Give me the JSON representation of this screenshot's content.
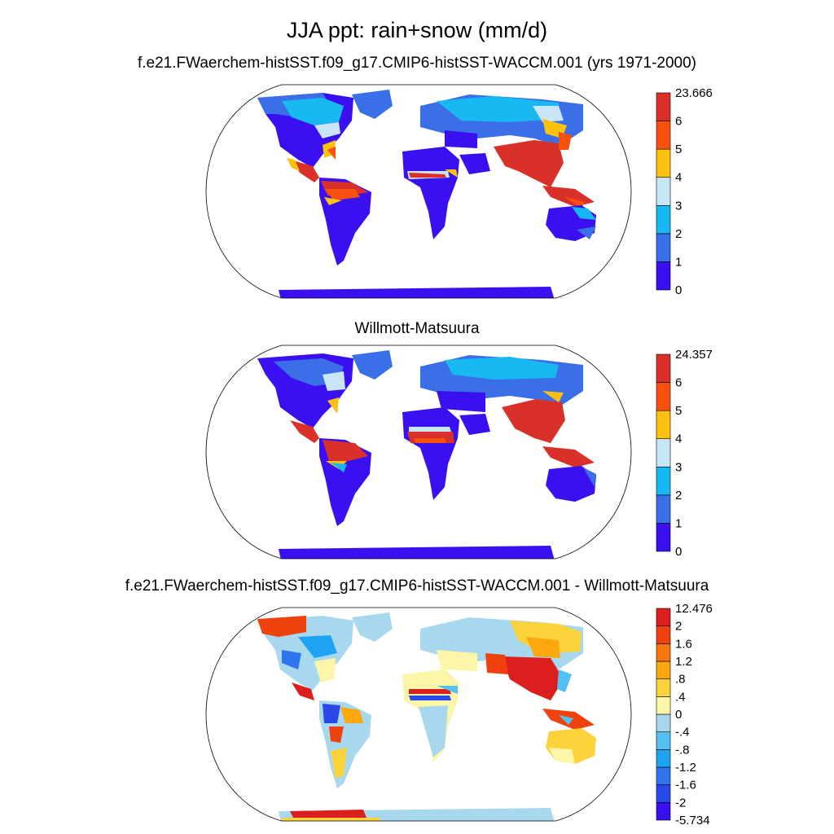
{
  "title": "JJA ppt: rain+snow (mm/d)",
  "panels": [
    {
      "id": "model",
      "title": "f.e21.FWaerchem-histSST.f09_g17.CMIP6-histSST-WACCM.001 (yrs 1971-2000)",
      "colorbar": {
        "labels": [
          "0",
          "1",
          "2",
          "3",
          "4",
          "5",
          "6",
          "23.666"
        ],
        "colors": [
          "#3a10f0",
          "#3a6fe8",
          "#18b8f2",
          "#c8e6f6",
          "#fcc10e",
          "#f8500f",
          "#d9312a"
        ]
      }
    },
    {
      "id": "observations",
      "title": "Willmott-Matsuura",
      "colorbar": {
        "labels": [
          "0",
          "1",
          "2",
          "3",
          "4",
          "5",
          "6",
          "24.357"
        ],
        "colors": [
          "#3a10f0",
          "#3a6fe8",
          "#18b8f2",
          "#c8e6f6",
          "#fcc10e",
          "#f8500f",
          "#d9312a"
        ]
      }
    },
    {
      "id": "difference",
      "title": "f.e21.FWaerchem-histSST.f09_g17.CMIP6-histSST-WACCM.001 - Willmott-Matsuura",
      "colorbar": {
        "labels": [
          "-5.734",
          "-2",
          "-1.6",
          "-1.2",
          "-.8",
          "-.4",
          "0",
          ".4",
          ".8",
          "1.2",
          "1.6",
          "2",
          "12.476"
        ],
        "colors": [
          "#3a10f0",
          "#2a48e8",
          "#2f74ec",
          "#1ea2f2",
          "#55c0f2",
          "#a8d8ee",
          "#fdf6a8",
          "#fdd33b",
          "#fba70e",
          "#f8760f",
          "#f0420e",
          "#dd1e1e"
        ]
      }
    }
  ]
}
